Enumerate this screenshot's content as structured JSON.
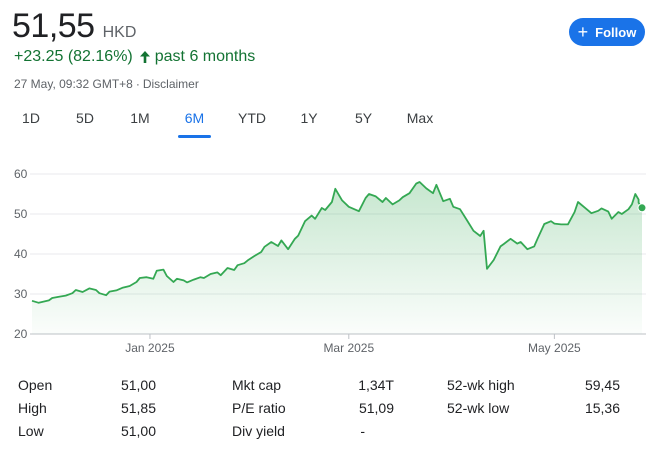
{
  "quote": {
    "price": "51,55",
    "currency": "HKD",
    "change": "+23.25 (82.16%)",
    "change_period": "past 6 months",
    "timestamp": "27 May, 09:32 GMT+8",
    "disclaimer": "Disclaimer"
  },
  "follow_button": {
    "label": "Follow",
    "icon": "plus-icon"
  },
  "tabs": [
    {
      "label": "1D",
      "active": false
    },
    {
      "label": "5D",
      "active": false
    },
    {
      "label": "1M",
      "active": false
    },
    {
      "label": "6M",
      "active": true
    },
    {
      "label": "YTD",
      "active": false
    },
    {
      "label": "1Y",
      "active": false
    },
    {
      "label": "5Y",
      "active": false
    },
    {
      "label": "Max",
      "active": false
    }
  ],
  "chart_data": {
    "type": "area",
    "yticks": [
      20,
      30,
      40,
      50,
      60
    ],
    "ylim": [
      20,
      60
    ],
    "xlim": [
      "2024-11-27",
      "2025-05-27"
    ],
    "xticks": [
      {
        "date": "2025-01-01",
        "label": "Jan 2025"
      },
      {
        "date": "2025-03-01",
        "label": "Mar 2025"
      },
      {
        "date": "2025-05-01",
        "label": "May 2025"
      }
    ],
    "series": [
      {
        "color": "#34a853",
        "points": [
          [
            "2024-11-27",
            28.3
          ],
          [
            "2024-11-29",
            27.8
          ],
          [
            "2024-12-02",
            28.4
          ],
          [
            "2024-12-03",
            29.0
          ],
          [
            "2024-12-05",
            29.3
          ],
          [
            "2024-12-07",
            29.6
          ],
          [
            "2024-12-09",
            30.2
          ],
          [
            "2024-12-10",
            31.0
          ],
          [
            "2024-12-12",
            30.5
          ],
          [
            "2024-12-14",
            31.4
          ],
          [
            "2024-12-16",
            31.0
          ],
          [
            "2024-12-17",
            30.2
          ],
          [
            "2024-12-19",
            29.7
          ],
          [
            "2024-12-20",
            30.6
          ],
          [
            "2024-12-22",
            30.9
          ],
          [
            "2024-12-24",
            31.6
          ],
          [
            "2024-12-26",
            32.0
          ],
          [
            "2024-12-28",
            33.0
          ],
          [
            "2024-12-29",
            34.0
          ],
          [
            "2024-12-31",
            34.2
          ],
          [
            "2025-01-02",
            33.8
          ],
          [
            "2025-01-03",
            35.8
          ],
          [
            "2025-01-05",
            36.1
          ],
          [
            "2025-01-06",
            34.5
          ],
          [
            "2025-01-08",
            33.0
          ],
          [
            "2025-01-09",
            33.8
          ],
          [
            "2025-01-11",
            33.4
          ],
          [
            "2025-01-12",
            32.9
          ],
          [
            "2025-01-14",
            33.6
          ],
          [
            "2025-01-16",
            34.2
          ],
          [
            "2025-01-17",
            34.0
          ],
          [
            "2025-01-19",
            35.0
          ],
          [
            "2025-01-21",
            35.4
          ],
          [
            "2025-01-22",
            34.7
          ],
          [
            "2025-01-24",
            36.5
          ],
          [
            "2025-01-26",
            36.0
          ],
          [
            "2025-01-27",
            37.2
          ],
          [
            "2025-01-29",
            37.7
          ],
          [
            "2025-01-30",
            38.4
          ],
          [
            "2025-02-01",
            39.5
          ],
          [
            "2025-02-03",
            40.5
          ],
          [
            "2025-02-04",
            41.8
          ],
          [
            "2025-02-06",
            43.0
          ],
          [
            "2025-02-08",
            42.0
          ],
          [
            "2025-02-09",
            43.4
          ],
          [
            "2025-02-11",
            41.2
          ],
          [
            "2025-02-13",
            43.8
          ],
          [
            "2025-02-14",
            44.6
          ],
          [
            "2025-02-16",
            48.2
          ],
          [
            "2025-02-18",
            49.6
          ],
          [
            "2025-02-19",
            48.8
          ],
          [
            "2025-02-21",
            51.5
          ],
          [
            "2025-02-22",
            51.0
          ],
          [
            "2025-02-24",
            53.0
          ],
          [
            "2025-02-25",
            56.3
          ],
          [
            "2025-02-27",
            53.4
          ],
          [
            "2025-03-01",
            51.8
          ],
          [
            "2025-03-04",
            50.7
          ],
          [
            "2025-03-06",
            54.0
          ],
          [
            "2025-03-07",
            55.0
          ],
          [
            "2025-03-09",
            54.4
          ],
          [
            "2025-03-11",
            53.0
          ],
          [
            "2025-03-12",
            54.0
          ],
          [
            "2025-03-14",
            52.4
          ],
          [
            "2025-03-16",
            53.4
          ],
          [
            "2025-03-17",
            54.2
          ],
          [
            "2025-03-19",
            55.2
          ],
          [
            "2025-03-21",
            57.6
          ],
          [
            "2025-03-22",
            58.0
          ],
          [
            "2025-03-24",
            56.4
          ],
          [
            "2025-03-26",
            55.2
          ],
          [
            "2025-03-27",
            57.3
          ],
          [
            "2025-03-29",
            53.2
          ],
          [
            "2025-03-31",
            53.8
          ],
          [
            "2025-04-01",
            51.8
          ],
          [
            "2025-04-03",
            51.2
          ],
          [
            "2025-04-05",
            48.5
          ],
          [
            "2025-04-07",
            45.8
          ],
          [
            "2025-04-09",
            44.5
          ],
          [
            "2025-04-10",
            45.8
          ],
          [
            "2025-04-11",
            36.3
          ],
          [
            "2025-04-13",
            38.5
          ],
          [
            "2025-04-15",
            41.9
          ],
          [
            "2025-04-16",
            42.5
          ],
          [
            "2025-04-18",
            43.8
          ],
          [
            "2025-04-20",
            42.6
          ],
          [
            "2025-04-21",
            43.0
          ],
          [
            "2025-04-23",
            41.2
          ],
          [
            "2025-04-25",
            41.9
          ],
          [
            "2025-04-26",
            43.8
          ],
          [
            "2025-04-28",
            47.5
          ],
          [
            "2025-04-30",
            48.2
          ],
          [
            "2025-05-01",
            47.6
          ],
          [
            "2025-05-03",
            47.4
          ],
          [
            "2025-05-05",
            47.4
          ],
          [
            "2025-05-07",
            50.5
          ],
          [
            "2025-05-08",
            53.0
          ],
          [
            "2025-05-10",
            51.6
          ],
          [
            "2025-05-12",
            50.2
          ],
          [
            "2025-05-14",
            50.8
          ],
          [
            "2025-05-15",
            51.4
          ],
          [
            "2025-05-17",
            50.6
          ],
          [
            "2025-05-18",
            48.8
          ],
          [
            "2025-05-20",
            50.5
          ],
          [
            "2025-05-21",
            50.0
          ],
          [
            "2025-05-23",
            51.2
          ],
          [
            "2025-05-24",
            52.4
          ],
          [
            "2025-05-25",
            55.0
          ],
          [
            "2025-05-26",
            53.6
          ],
          [
            "2025-05-26",
            52.8
          ],
          [
            "2025-05-27",
            51.55
          ]
        ]
      }
    ]
  },
  "stats": {
    "col1": [
      {
        "label": "Open",
        "value": "51,00"
      },
      {
        "label": "High",
        "value": "51,85"
      },
      {
        "label": "Low",
        "value": "51,00"
      }
    ],
    "col2": [
      {
        "label": "Mkt cap",
        "value": "1,34T"
      },
      {
        "label": "P/E ratio",
        "value": "51,09"
      },
      {
        "label": "Div yield",
        "value": "-"
      }
    ],
    "col3": [
      {
        "label": "52-wk high",
        "value": "59,45"
      },
      {
        "label": "52-wk low",
        "value": "15,36"
      }
    ]
  }
}
